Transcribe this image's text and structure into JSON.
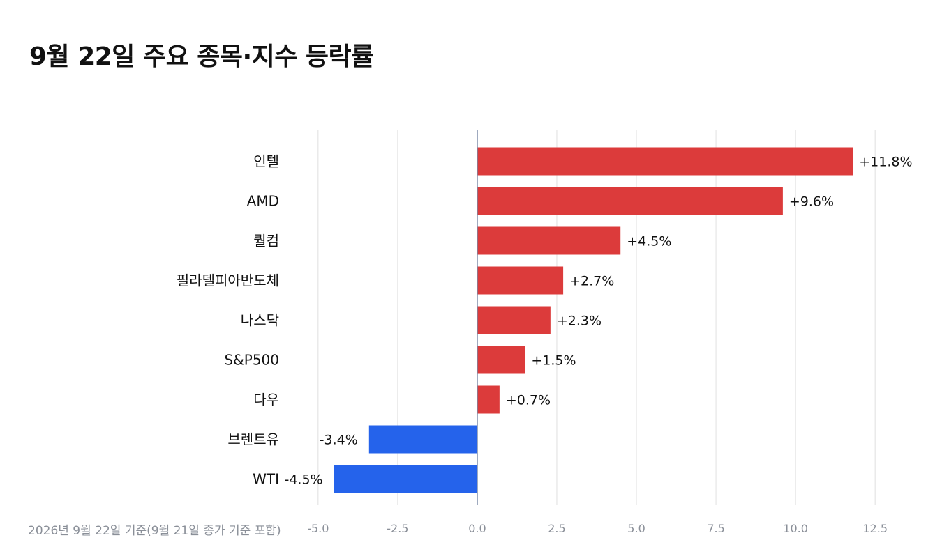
{
  "chart_data": {
    "type": "bar",
    "orientation": "horizontal",
    "title": "9월 22일 주요 종목·지수 등락률",
    "xlabel": "",
    "ylabel": "",
    "categories": [
      "인텔",
      "AMD",
      "퀄컴",
      "필라델피아반도체",
      "나스닥",
      "S&P500",
      "다우",
      "브렌트유",
      "WTI"
    ],
    "values": [
      11.8,
      9.6,
      4.5,
      2.7,
      2.3,
      1.5,
      0.7,
      -3.4,
      -4.5
    ],
    "value_labels": [
      "+11.8%",
      "+9.6%",
      "+4.5%",
      "+2.7%",
      "+2.3%",
      "+1.5%",
      "+0.7%",
      "-3.4%",
      "-4.5%"
    ],
    "xlim": [
      -5.5,
      13
    ],
    "xticks": [
      -5.0,
      -2.5,
      0.0,
      2.5,
      5.0,
      7.5,
      10.0,
      12.5
    ],
    "xtick_labels": [
      "-5.0",
      "-2.5",
      "0.0",
      "2.5",
      "5.0",
      "7.5",
      "10.0",
      "12.5"
    ],
    "grid": "vertical",
    "legend": "none",
    "colors": {
      "positive": "#dc3b3b",
      "negative": "#2563eb",
      "grid": "#e5e5e5",
      "zero_line": "#7a8aa6"
    },
    "footnote": "2026년 9월 22일 기준(9월 21일 종가 기준 포함)"
  }
}
